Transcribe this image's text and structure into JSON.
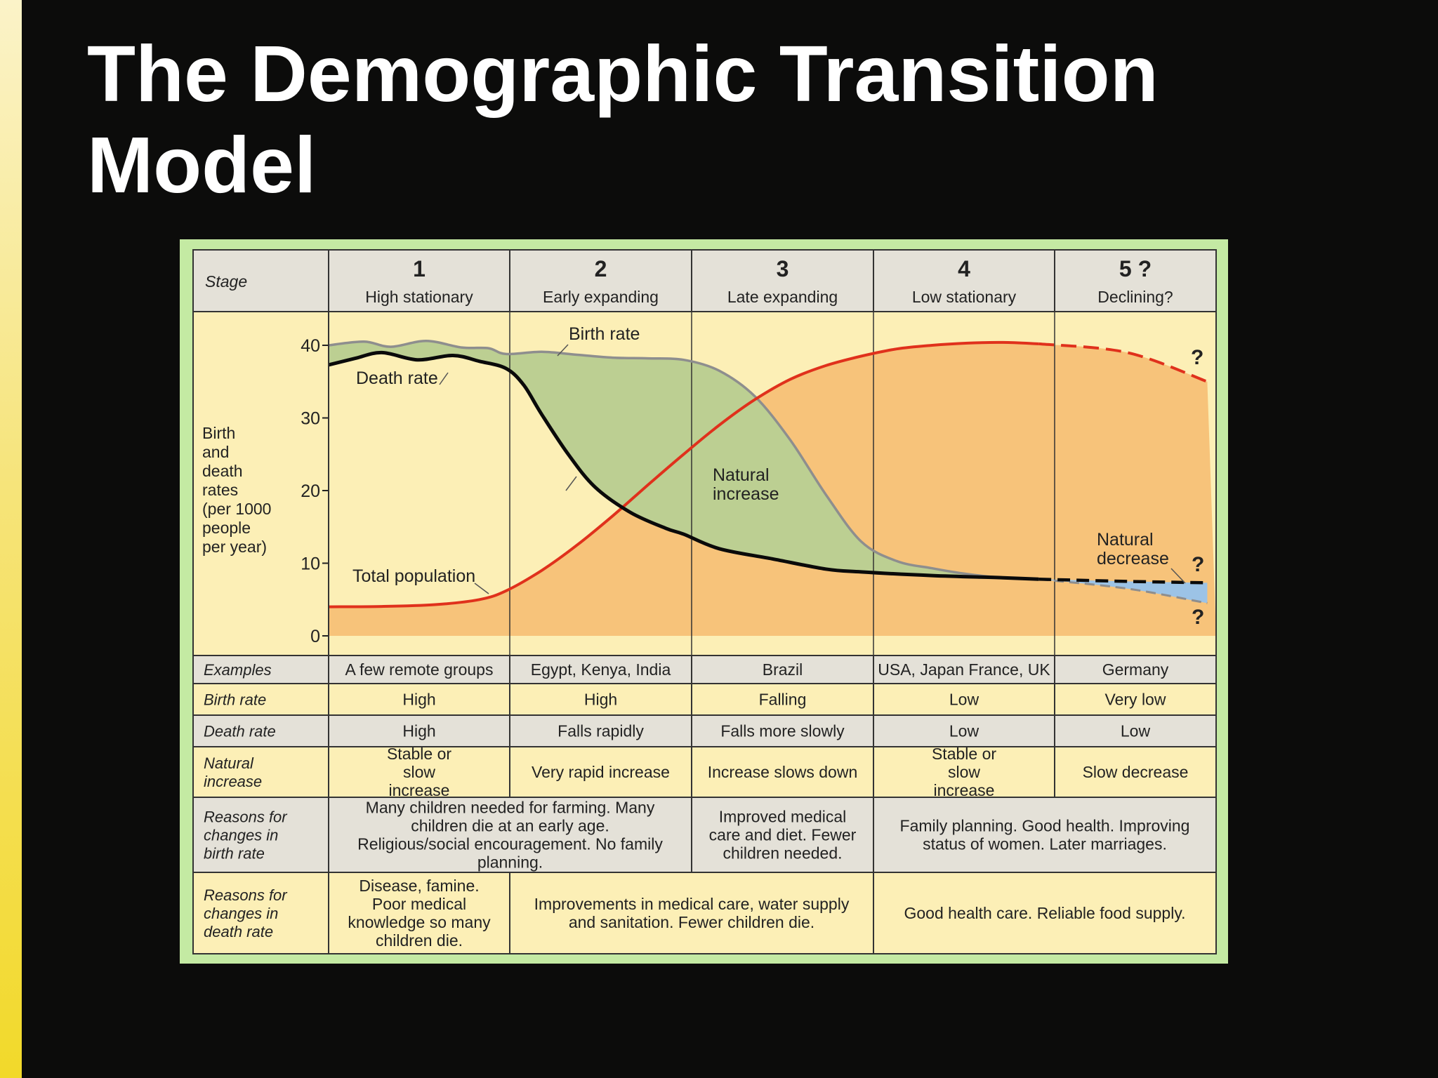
{
  "slide": {
    "title": "The Demographic Transition Model"
  },
  "colors": {
    "frame": "#c4eaa3",
    "cream": "#fcefb6",
    "grey_cell": "#e4e1d8",
    "birth_rate_band": "#bccf92",
    "population_fill": "#f7c37a",
    "population_line": "#e0311c",
    "death_rate_line": "#0a0a0a",
    "birth_rate_line": "#8e8e8e",
    "natural_decrease": "#9cc3e6"
  },
  "stage_header": {
    "row_label": "Stage",
    "stages": [
      {
        "number": "1",
        "name": "High stationary"
      },
      {
        "number": "2",
        "name": "Early expanding"
      },
      {
        "number": "3",
        "name": "Late expanding"
      },
      {
        "number": "4",
        "name": "Low stationary"
      },
      {
        "number": "5 ?",
        "name": "Declining?"
      }
    ]
  },
  "chart_data": {
    "type": "line",
    "ylabel": "Birth and death rates (per 1000 people per year)",
    "ylabel_lines": [
      "Birth",
      "and",
      "death",
      "rates",
      "(per 1000",
      "people",
      "per year)"
    ],
    "yticks": [
      0,
      10,
      20,
      30,
      40
    ],
    "ylim": [
      0,
      41
    ],
    "xlim": [
      0,
      5
    ],
    "x_unit": "stage",
    "series": [
      {
        "name": "Birth rate",
        "x": [
          0,
          0.2,
          0.35,
          0.55,
          0.75,
          0.9,
          1.0,
          1.2,
          1.4,
          1.6,
          1.8,
          2.0,
          2.2,
          2.4,
          2.6,
          2.8,
          3.0,
          3.2,
          3.4,
          3.6,
          3.8,
          4.0
        ],
        "y": [
          40,
          40.5,
          39.8,
          40.6,
          39.7,
          39.6,
          38.8,
          39.1,
          38.7,
          38.3,
          38.2,
          38.0,
          36.5,
          33,
          27,
          19.5,
          13,
          10.3,
          9.3,
          8.5,
          8.0,
          7.8
        ],
        "projected": {
          "x": [
            4.0,
            4.5,
            4.95
          ],
          "y": [
            7.8,
            6.5,
            4.5
          ]
        }
      },
      {
        "name": "Death rate",
        "x": [
          0,
          0.15,
          0.3,
          0.5,
          0.7,
          0.85,
          1.0,
          1.1,
          1.2,
          1.35,
          1.5,
          1.7,
          1.9,
          2.0,
          2.2,
          2.5,
          2.8,
          3.0,
          3.4,
          3.8,
          4.0
        ],
        "y": [
          37.3,
          38.2,
          39.0,
          38.0,
          38.6,
          37.8,
          36.8,
          34.5,
          30.5,
          25,
          20.5,
          17,
          14.8,
          14.0,
          12.0,
          10.6,
          9.2,
          8.8,
          8.3,
          8.0,
          7.8
        ],
        "projected": {
          "x": [
            4.0,
            4.5,
            4.95
          ],
          "y": [
            7.8,
            7.5,
            7.3
          ]
        }
      },
      {
        "name": "Total population",
        "x": [
          0,
          0.3,
          0.6,
          0.85,
          1.0,
          1.2,
          1.4,
          1.6,
          1.8,
          2.0,
          2.2,
          2.4,
          2.6,
          2.8,
          3.0,
          3.2,
          3.4,
          3.6,
          3.8,
          4.0
        ],
        "y": [
          4,
          4.05,
          4.3,
          5.0,
          6.2,
          9.0,
          12.5,
          16.5,
          20.8,
          25.0,
          29.0,
          32.5,
          35.3,
          37.2,
          38.5,
          39.5,
          40.0,
          40.3,
          40.4,
          40.2
        ],
        "projected": {
          "x": [
            4.0,
            4.5,
            4.95
          ],
          "y": [
            40.2,
            39.0,
            35.0
          ]
        }
      }
    ],
    "annotations": [
      "Birth rate",
      "Death rate",
      "Total population",
      "Natural increase",
      "Natural decrease",
      "?"
    ],
    "natural_increase_lines": [
      "Natural",
      "increase"
    ],
    "natural_decrease_lines": [
      "Natural",
      "decrease"
    ],
    "question_mark": "?"
  },
  "table": {
    "rows": [
      {
        "label": "Examples",
        "cells": [
          "A few remote groups",
          "Egypt, Kenya, India",
          "Brazil",
          "USA, Japan France, UK",
          "Germany"
        ]
      },
      {
        "label": "Birth rate",
        "cells": [
          "High",
          "High",
          "Falling",
          "Low",
          "Very low"
        ]
      },
      {
        "label": "Death rate",
        "cells": [
          "High",
          "Falls rapidly",
          "Falls more slowly",
          "Low",
          "Low"
        ]
      },
      {
        "label": "Natural increase",
        "cells": [
          "Stable or slow increase",
          "Very rapid increase",
          "Increase slows down",
          "Stable or slow increase",
          "Slow decrease"
        ]
      },
      {
        "label": "Reasons for changes in birth rate",
        "cells": [
          "Many children needed for farming. Many children die at an early age. Religious/social encouragement. No family planning.",
          "Improved medical care and diet. Fewer children needed.",
          "Family planning. Good health. Improving status of women. Later marriages."
        ]
      },
      {
        "label": "Reasons for changes in death rate",
        "cells": [
          "Disease, famine. Poor medical knowledge so many children die.",
          "Improvements in medical care, water supply and sanitation. Fewer children die.",
          "Good health care. Reliable food supply."
        ]
      }
    ]
  }
}
